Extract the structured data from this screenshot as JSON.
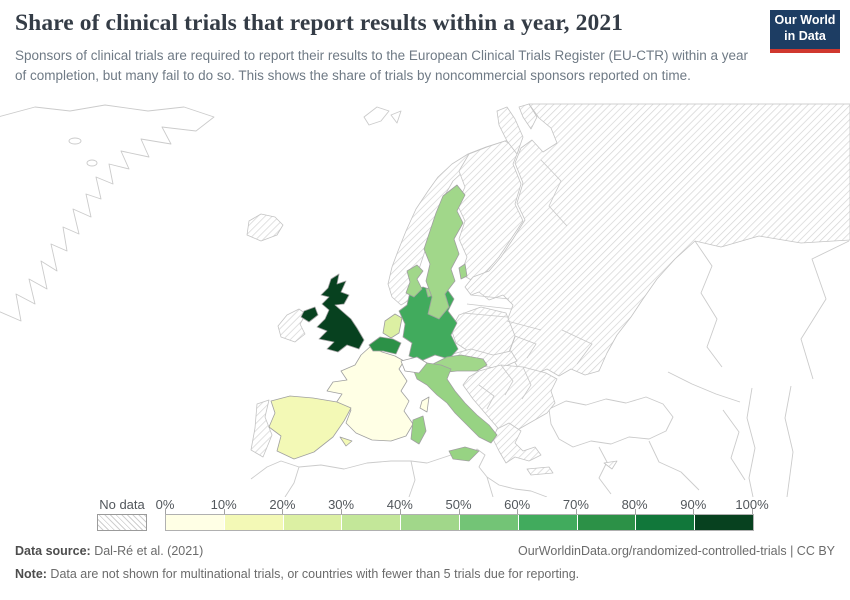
{
  "header": {
    "title": "Share of clinical trials that report results within a year, 2021",
    "subtitle": "Sponsors of clinical trials are required to report their results to the European Clinical Trials Register (EU-CTR) within a year of completion, but many fail to do so. This shows the share of trials by noncommercial sponsors reported on time.",
    "logo": {
      "line1": "Our World",
      "line2": "in Data",
      "bg_color": "#1d3d63",
      "accent_color": "#d0382e"
    }
  },
  "legend": {
    "no_data_label": "No data",
    "tick_labels": [
      "0%",
      "10%",
      "20%",
      "30%",
      "40%",
      "50%",
      "60%",
      "70%",
      "80%",
      "90%",
      "100%"
    ],
    "bin_colors": [
      "#ffffe5",
      "#f3f9b6",
      "#dcf0a3",
      "#c3e799",
      "#a1d78a",
      "#73c476",
      "#41ab5d",
      "#2c9147",
      "#11773a",
      "#07411f"
    ]
  },
  "footer": {
    "source_label": "Data source:",
    "source_value": " Dal-Ré et al. (2021)",
    "link_text": "OurWorldinData.org/randomized-controlled-trials | CC BY",
    "note_label": "Note:",
    "note_value": " Data are not shown for multinational trials, or countries with fewer than 5 trials due for reporting."
  },
  "chart_data": {
    "type": "choropleth",
    "title": "Share of clinical trials that report results within a year, 2021",
    "unit": "share of trials by noncommercial sponsors reported on time (%)",
    "region": "Europe",
    "bins": [
      "0-10%",
      "10-20%",
      "20-30%",
      "30-40%",
      "40-50%",
      "50-60%",
      "60-70%",
      "70-80%",
      "80-90%",
      "90-100%"
    ],
    "countries": [
      {
        "name": "United Kingdom",
        "range": "90-100%",
        "color": "#07411f"
      },
      {
        "name": "Belgium",
        "range": "70-80%",
        "color": "#2c9147"
      },
      {
        "name": "Germany",
        "range": "60-70%",
        "color": "#41ab5d"
      },
      {
        "name": "Italy",
        "range": "40-50%",
        "color": "#97d383"
      },
      {
        "name": "Sweden",
        "range": "40-50%",
        "color": "#a1d78a"
      },
      {
        "name": "Denmark",
        "range": "40-50%",
        "color": "#a1d78a"
      },
      {
        "name": "Austria",
        "range": "40-50%",
        "color": "#a1d78a"
      },
      {
        "name": "Netherlands",
        "range": "20-30%",
        "color": "#dcf0a3"
      },
      {
        "name": "Spain",
        "range": "10-20%",
        "color": "#f3f9b6"
      },
      {
        "name": "France",
        "range": "0-10%",
        "color": "#ffffe5"
      }
    ],
    "no_data_countries": [
      "Iceland",
      "Ireland",
      "Norway",
      "Finland",
      "Portugal",
      "Poland",
      "Czechia",
      "Slovakia",
      "Hungary",
      "Romania",
      "Bulgaria",
      "Serbia",
      "Croatia",
      "Greece",
      "Estonia",
      "Latvia",
      "Lithuania",
      "Belarus",
      "Ukraine",
      "Russia",
      "Cyprus"
    ]
  }
}
